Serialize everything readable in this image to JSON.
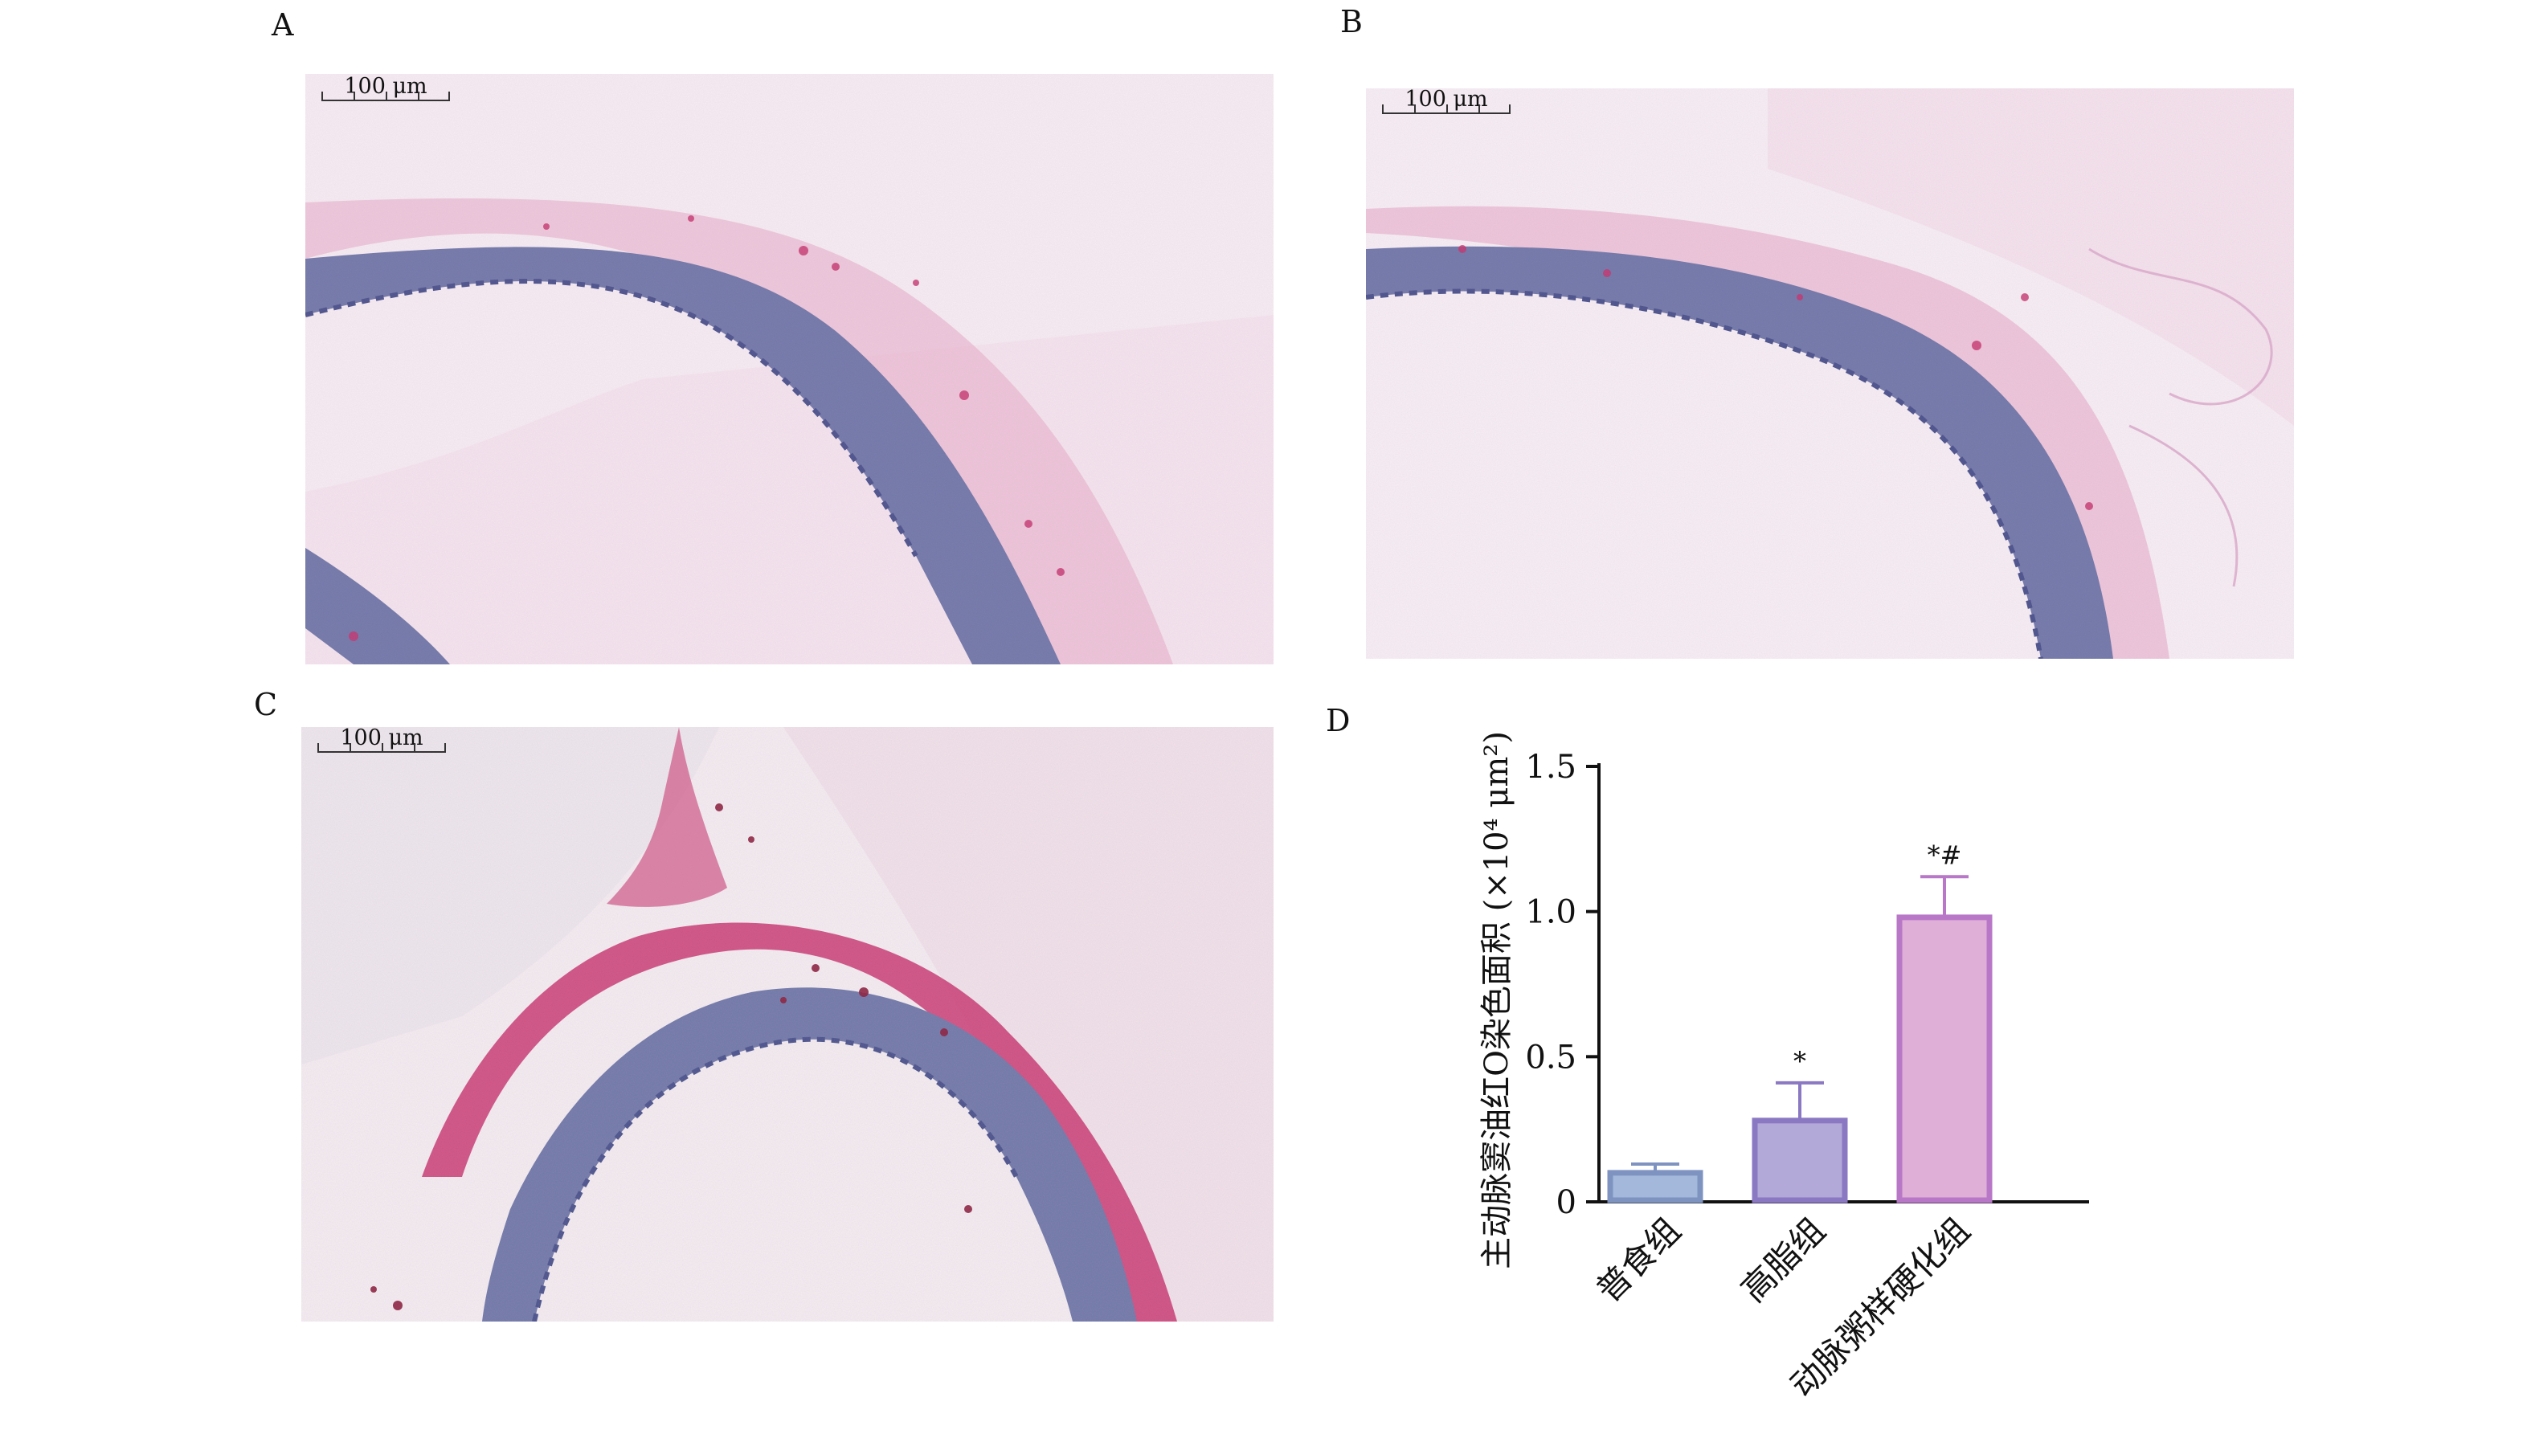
{
  "panels": {
    "a": {
      "letter": "A",
      "scale_label": "100 μm"
    },
    "b": {
      "letter": "B",
      "scale_label": "100 μm"
    },
    "c": {
      "letter": "C",
      "scale_label": "100 μm"
    },
    "d": {
      "letter": "D"
    }
  },
  "colors": {
    "background": "#f6eef3",
    "vessel_wall": "#6f77a8",
    "lipid_stain": "#c42f6a",
    "nuclei": "#4a5aa8"
  },
  "chart_data": {
    "type": "bar",
    "title": "",
    "ylabel": "主动脉窦油红O染色面积 (×10⁴ μm²)",
    "xlabel": "",
    "ylim": [
      0,
      1.5
    ],
    "yticks": [
      0,
      0.5,
      1.0,
      1.5
    ],
    "ytick_labels": [
      "0",
      "0.5",
      "1.0",
      "1.5"
    ],
    "categories": [
      "普食组",
      "高脂组",
      "动脉粥样硬化组"
    ],
    "values": [
      0.1,
      0.28,
      0.98
    ],
    "errors": [
      0.03,
      0.13,
      0.14
    ],
    "annotations": [
      "",
      "*",
      "*#"
    ],
    "bar_fill": [
      "#a3b8da",
      "#b3a9d8",
      "#e0afd8"
    ],
    "bar_edge": [
      "#7f93c1",
      "#8a78c3",
      "#b978c7"
    ],
    "grid": false
  }
}
